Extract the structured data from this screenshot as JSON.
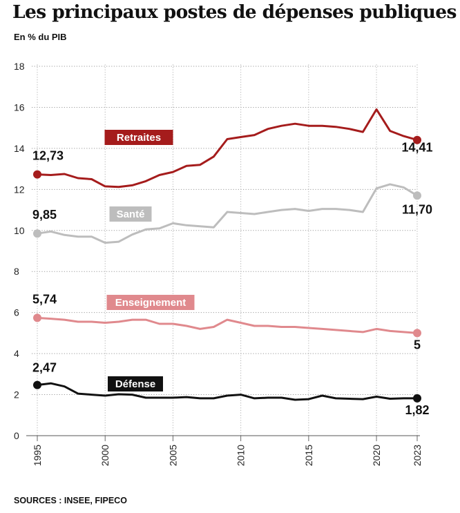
{
  "title": "Les principaux postes de dépenses publiques",
  "subtitle": "En % du PIB",
  "source": "SOURCES : INSEE, FIPECO",
  "chart_data": {
    "type": "line",
    "title": "Les principaux postes de dépenses publiques",
    "ylabel": "En % du PIB",
    "xlabel": "",
    "xlim": [
      1995,
      2023
    ],
    "ylim": [
      0,
      18
    ],
    "grid": true,
    "yticks": [
      0,
      2,
      4,
      6,
      8,
      10,
      12,
      14,
      16,
      18
    ],
    "xtick_labels": [
      "1995",
      "2000",
      "2005",
      "2010",
      "2015",
      "2020",
      "2023"
    ],
    "x": [
      1995,
      1996,
      1997,
      1998,
      1999,
      2000,
      2001,
      2002,
      2003,
      2004,
      2005,
      2006,
      2007,
      2008,
      2009,
      2010,
      2011,
      2012,
      2013,
      2014,
      2015,
      2016,
      2017,
      2018,
      2019,
      2020,
      2021,
      2022,
      2023
    ],
    "series": [
      {
        "name": "Retraites",
        "color": "#a51c1c",
        "label_color": "#a51c1c",
        "start_label": "12,73",
        "end_label": "14,41",
        "values": [
          12.73,
          12.7,
          12.75,
          12.55,
          12.5,
          12.15,
          12.12,
          12.2,
          12.4,
          12.7,
          12.85,
          13.15,
          13.2,
          13.6,
          14.45,
          14.55,
          14.65,
          14.95,
          15.1,
          15.2,
          15.1,
          15.1,
          15.05,
          14.95,
          14.8,
          15.9,
          14.85,
          14.6,
          14.41
        ]
      },
      {
        "name": "Santé",
        "color": "#bdbdbd",
        "label_color": "#bdbdbd",
        "start_label": "9,85",
        "end_label": "11,70",
        "values": [
          9.85,
          9.95,
          9.78,
          9.7,
          9.7,
          9.4,
          9.45,
          9.8,
          10.05,
          10.1,
          10.35,
          10.25,
          10.2,
          10.15,
          10.9,
          10.85,
          10.8,
          10.9,
          11.0,
          11.05,
          10.95,
          11.05,
          11.05,
          11.0,
          10.9,
          12.05,
          12.25,
          12.1,
          11.7
        ]
      },
      {
        "name": "Enseignement",
        "color": "#e0898d",
        "label_color": "#e0898d",
        "start_label": "5,74",
        "end_label": "5",
        "values": [
          5.74,
          5.7,
          5.65,
          5.55,
          5.55,
          5.5,
          5.55,
          5.65,
          5.65,
          5.45,
          5.45,
          5.35,
          5.2,
          5.3,
          5.65,
          5.5,
          5.35,
          5.35,
          5.3,
          5.3,
          5.25,
          5.2,
          5.15,
          5.1,
          5.05,
          5.2,
          5.1,
          5.05,
          5.0
        ]
      },
      {
        "name": "Défense",
        "color": "#111111",
        "label_color": "#111111",
        "start_label": "2,47",
        "end_label": "1,82",
        "values": [
          2.47,
          2.55,
          2.4,
          2.05,
          2.0,
          1.95,
          2.02,
          2.0,
          1.85,
          1.85,
          1.85,
          1.88,
          1.82,
          1.82,
          1.95,
          2.0,
          1.82,
          1.85,
          1.85,
          1.75,
          1.78,
          1.95,
          1.82,
          1.8,
          1.78,
          1.9,
          1.8,
          1.82,
          1.82
        ]
      }
    ]
  }
}
